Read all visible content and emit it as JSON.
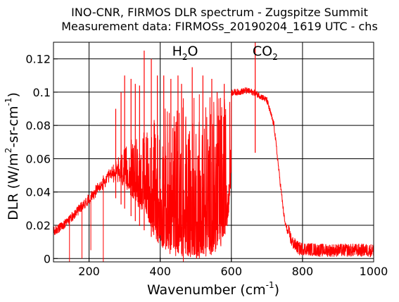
{
  "chart_data": {
    "type": "line",
    "title": "INO-CNR, FIRMOS DLR spectrum - Zugspitze Summit",
    "subtitle": "Measurement data: FIRMOSs_20190204_1619 UTC - chs",
    "xlabel": {
      "base": "Wavenumber (cm",
      "sup": "-1",
      "tail": ")"
    },
    "ylabel": {
      "p1": "DLR (W/m",
      "sup1": "2",
      "p2": "-sr-cm",
      "sup2": "-1",
      "p3": ")"
    },
    "xlim": [
      100,
      1000
    ],
    "ylim": [
      -0.002,
      0.13
    ],
    "xticks": [
      200,
      400,
      600,
      800,
      1000
    ],
    "yticks": [
      0,
      0.02,
      0.04,
      0.06,
      0.08,
      0.1,
      0.12
    ],
    "ytick_labels": [
      "0",
      "0.02",
      "0.04",
      "0.06",
      "0.08",
      "0.1",
      "0.12"
    ],
    "grid": true,
    "series_color": "#ff0000",
    "annotations": [
      {
        "base": "H",
        "sub": "2",
        "tail": "O",
        "x": 470,
        "y": 0.122
      },
      {
        "base": "CO",
        "sub": "2",
        "tail": "",
        "x": 695,
        "y": 0.122
      }
    ],
    "envelope": {
      "x": [
        100,
        130,
        160,
        190,
        220,
        250,
        270,
        300,
        330,
        360,
        400,
        430,
        460,
        490,
        520,
        550,
        580,
        600,
        620,
        640,
        660,
        680,
        700,
        720,
        735,
        750,
        770,
        790,
        800,
        850,
        900,
        950,
        1000
      ],
      "y": [
        0.016,
        0.02,
        0.027,
        0.034,
        0.042,
        0.05,
        0.057,
        0.065,
        0.072,
        0.08,
        0.088,
        0.093,
        0.096,
        0.098,
        0.099,
        0.1,
        0.1,
        0.1,
        0.1,
        0.101,
        0.1,
        0.098,
        0.095,
        0.08,
        0.05,
        0.022,
        0.008,
        0.004,
        0.004,
        0.003,
        0.003,
        0.003,
        0.003
      ]
    },
    "trough_floor": {
      "x": [
        100,
        200,
        260,
        300,
        340,
        380,
        420,
        460,
        500,
        540,
        570,
        590,
        600,
        610,
        800,
        1000
      ],
      "y": [
        0.012,
        0.03,
        0.04,
        0.03,
        0.02,
        0.012,
        0.006,
        0.003,
        0.002,
        0.004,
        0.01,
        0.02,
        0.05,
        0.09,
        0.002,
        0.001
      ]
    },
    "emission_peaks": [
      {
        "x": 275,
        "y": 0.09
      },
      {
        "x": 290,
        "y": 0.1
      },
      {
        "x": 300,
        "y": 0.11
      },
      {
        "x": 318,
        "y": 0.108
      },
      {
        "x": 330,
        "y": 0.105
      },
      {
        "x": 342,
        "y": 0.104
      },
      {
        "x": 355,
        "y": 0.125
      },
      {
        "x": 375,
        "y": 0.12
      },
      {
        "x": 392,
        "y": 0.11
      },
      {
        "x": 410,
        "y": 0.11
      },
      {
        "x": 430,
        "y": 0.108
      },
      {
        "x": 450,
        "y": 0.11
      },
      {
        "x": 460,
        "y": 0.105
      },
      {
        "x": 490,
        "y": 0.115
      },
      {
        "x": 520,
        "y": 0.11
      },
      {
        "x": 545,
        "y": 0.108
      },
      {
        "x": 560,
        "y": 0.1
      },
      {
        "x": 580,
        "y": 0.105
      },
      {
        "x": 667,
        "y": 0.135
      }
    ],
    "absorption_dips": [
      {
        "x": 145,
        "y": -0.002
      },
      {
        "x": 180,
        "y": 0.0
      },
      {
        "x": 205,
        "y": 0.005
      },
      {
        "x": 240,
        "y": -0.002
      },
      {
        "x": 465,
        "y": -0.002
      },
      {
        "x": 510,
        "y": 0.0
      }
    ]
  }
}
